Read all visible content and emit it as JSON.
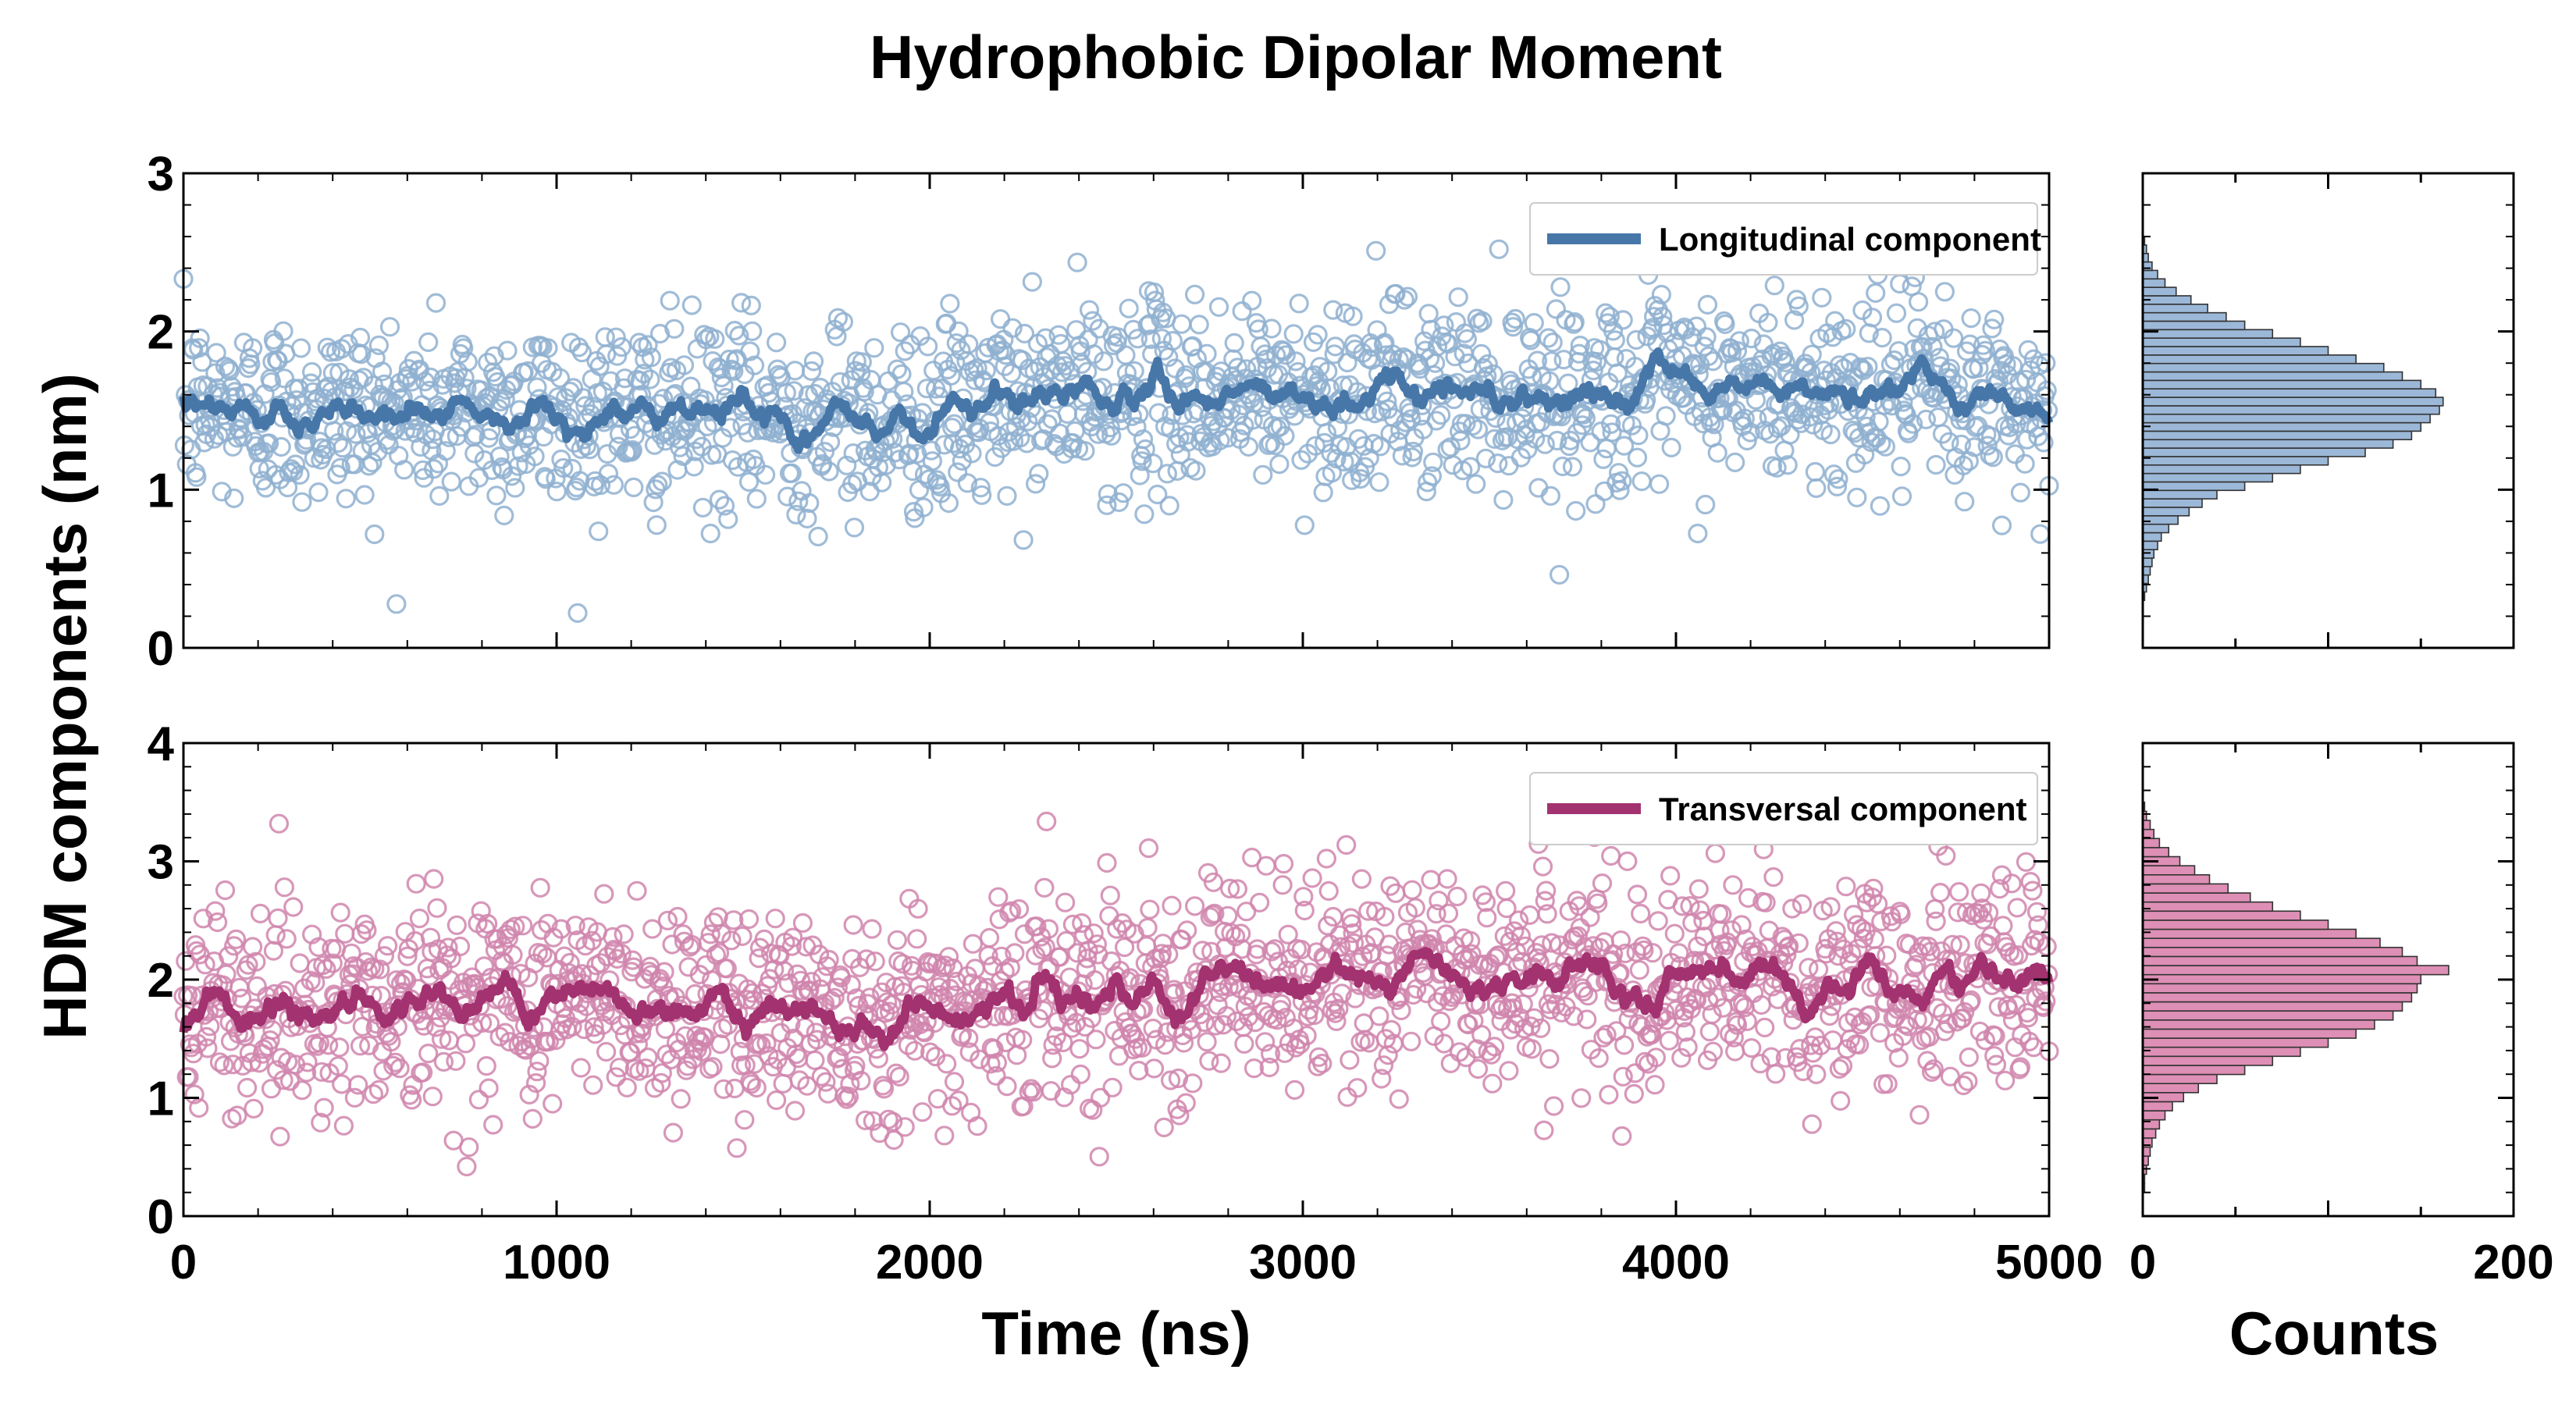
{
  "chart_data": {
    "type": "scatter",
    "title": "Hydrophobic Dipolar Moment",
    "ylabel": "HDM components (nm)",
    "xlabel": "Time (ns)",
    "hist_xlabel": "Counts",
    "xlim": [
      0,
      5000
    ],
    "xticks": [
      "0",
      "1000",
      "2000",
      "3000",
      "4000",
      "5000"
    ],
    "hist_xlim": [
      0,
      200
    ],
    "hist_xticks": [
      "0",
      "200"
    ],
    "panels": [
      {
        "series_name": "Longitudinal component",
        "color": "#4777a8",
        "marker_color": "#8fb0d0",
        "hist_color": "#9cb8d8",
        "ylim": [
          0,
          3
        ],
        "yticks": [
          "0",
          "1",
          "2",
          "3"
        ],
        "mean": 1.55,
        "spread": 0.3,
        "smooth_trend": [
          [
            0,
            1.5
          ],
          [
            1000,
            1.48
          ],
          [
            2000,
            1.45
          ],
          [
            2400,
            1.6
          ],
          [
            3000,
            1.6
          ],
          [
            3500,
            1.62
          ],
          [
            4000,
            1.62
          ],
          [
            4500,
            1.65
          ],
          [
            5000,
            1.5
          ]
        ],
        "hist_bins": [
          0.3,
          2.6
        ],
        "hist_counts": [
          1,
          2,
          3,
          4,
          5,
          6,
          8,
          10,
          14,
          19,
          25,
          32,
          40,
          55,
          70,
          85,
          100,
          120,
          135,
          145,
          150,
          155,
          160,
          162,
          158,
          150,
          140,
          130,
          115,
          100,
          85,
          70,
          55,
          45,
          35,
          26,
          18,
          12,
          8,
          5,
          3,
          2,
          1
        ]
      },
      {
        "series_name": "Transversal component",
        "color": "#a33270",
        "marker_color": "#d085ad",
        "hist_color": "#de8fb5",
        "ylim": [
          0,
          4
        ],
        "yticks": [
          "0",
          "1",
          "2",
          "3",
          "4"
        ],
        "mean": 1.9,
        "spread": 0.45,
        "smooth_trend": [
          [
            0,
            1.75
          ],
          [
            1000,
            1.85
          ],
          [
            2000,
            1.7
          ],
          [
            2400,
            1.95
          ],
          [
            3000,
            1.95
          ],
          [
            3200,
            2.05
          ],
          [
            4000,
            2.0
          ],
          [
            4600,
            1.95
          ],
          [
            5000,
            2.05
          ]
        ],
        "hist_bins": [
          0.2,
          3.5
        ],
        "hist_counts": [
          1,
          1,
          2,
          3,
          4,
          5,
          7,
          9,
          12,
          16,
          22,
          30,
          40,
          55,
          70,
          85,
          100,
          115,
          125,
          135,
          140,
          145,
          148,
          150,
          165,
          148,
          140,
          128,
          115,
          100,
          85,
          70,
          58,
          46,
          36,
          28,
          20,
          14,
          9,
          6,
          4,
          2,
          1
        ]
      }
    ]
  }
}
